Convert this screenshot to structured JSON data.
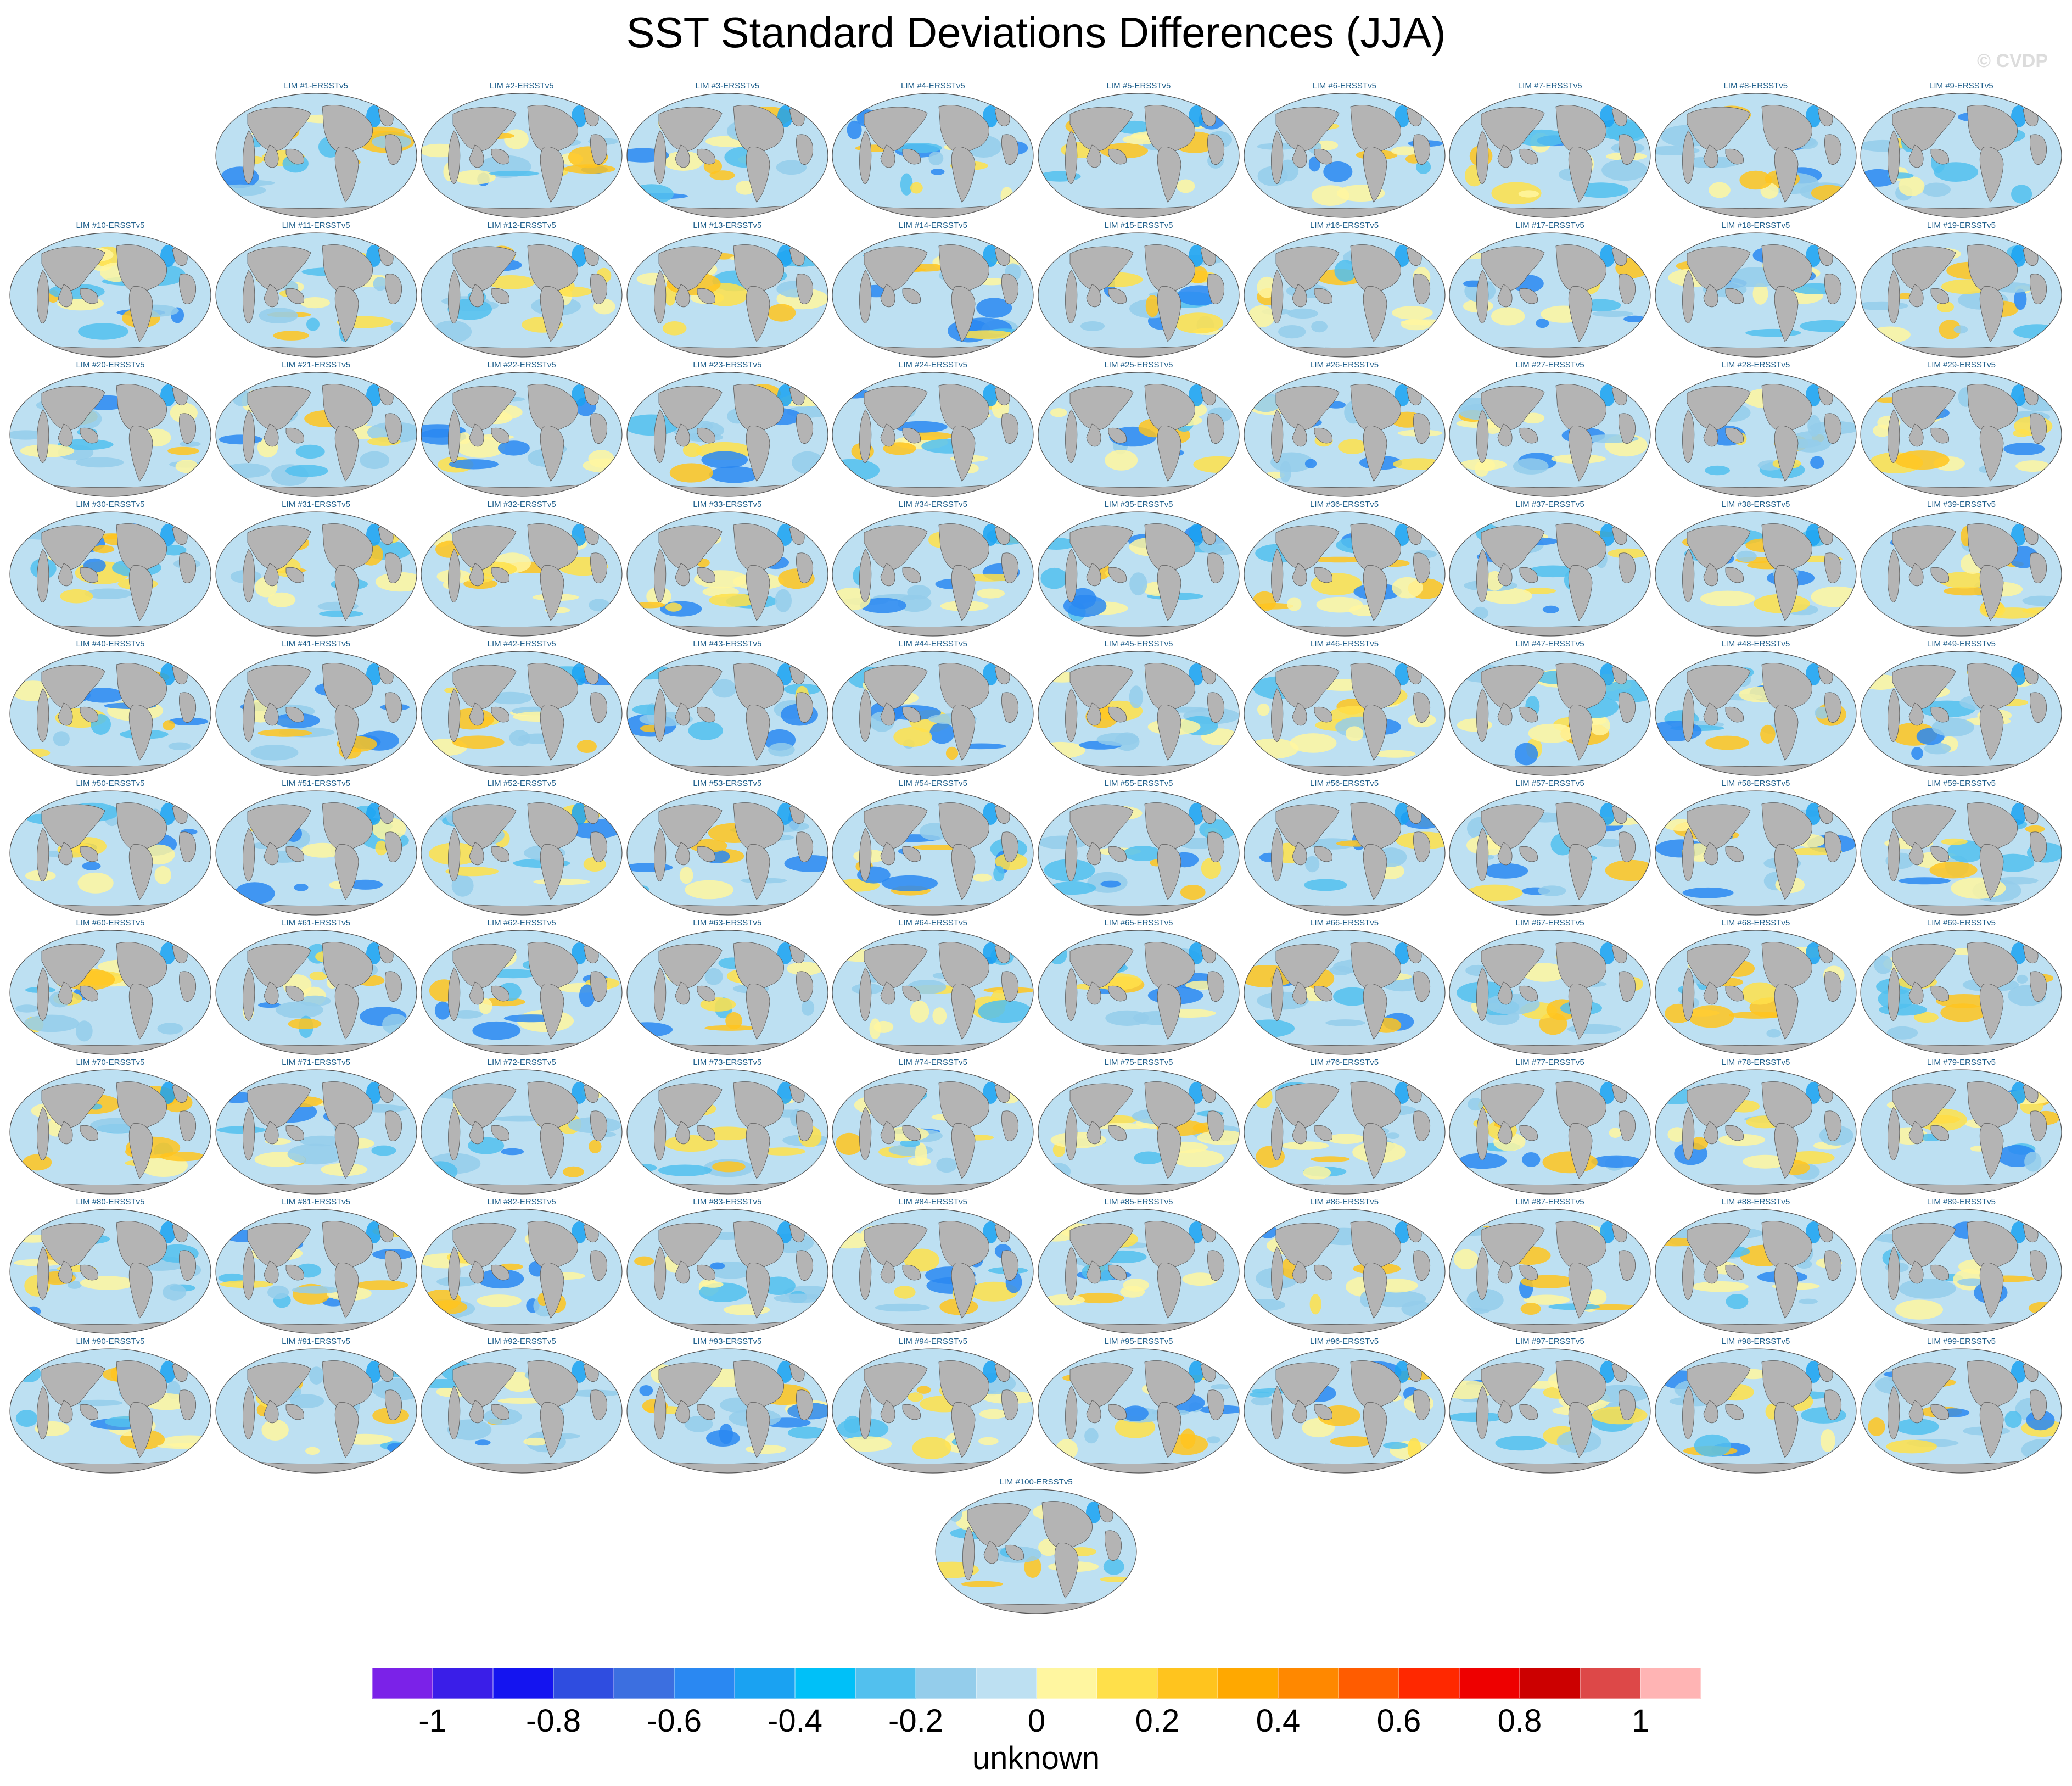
{
  "figure": {
    "title": "SST Standard Deviations Differences (JJA)",
    "credit": "© CVDP",
    "units_label": "unknown"
  },
  "panels": [
    {
      "label": "LIM #1-ERSSTv5"
    },
    {
      "label": "LIM #2-ERSSTv5"
    },
    {
      "label": "LIM #3-ERSSTv5"
    },
    {
      "label": "LIM #4-ERSSTv5"
    },
    {
      "label": "LIM #5-ERSSTv5"
    },
    {
      "label": "LIM #6-ERSSTv5"
    },
    {
      "label": "LIM #7-ERSSTv5"
    },
    {
      "label": "LIM #8-ERSSTv5"
    },
    {
      "label": "LIM #9-ERSSTv5"
    },
    {
      "label": "LIM #10-ERSSTv5"
    },
    {
      "label": "LIM #11-ERSSTv5"
    },
    {
      "label": "LIM #12-ERSSTv5"
    },
    {
      "label": "LIM #13-ERSSTv5"
    },
    {
      "label": "LIM #14-ERSSTv5"
    },
    {
      "label": "LIM #15-ERSSTv5"
    },
    {
      "label": "LIM #16-ERSSTv5"
    },
    {
      "label": "LIM #17-ERSSTv5"
    },
    {
      "label": "LIM #18-ERSSTv5"
    },
    {
      "label": "LIM #19-ERSSTv5"
    },
    {
      "label": "LIM #20-ERSSTv5"
    },
    {
      "label": "LIM #21-ERSSTv5"
    },
    {
      "label": "LIM #22-ERSSTv5"
    },
    {
      "label": "LIM #23-ERSSTv5"
    },
    {
      "label": "LIM #24-ERSSTv5"
    },
    {
      "label": "LIM #25-ERSSTv5"
    },
    {
      "label": "LIM #26-ERSSTv5"
    },
    {
      "label": "LIM #27-ERSSTv5"
    },
    {
      "label": "LIM #28-ERSSTv5"
    },
    {
      "label": "LIM #29-ERSSTv5"
    },
    {
      "label": "LIM #30-ERSSTv5"
    },
    {
      "label": "LIM #31-ERSSTv5"
    },
    {
      "label": "LIM #32-ERSSTv5"
    },
    {
      "label": "LIM #33-ERSSTv5"
    },
    {
      "label": "LIM #34-ERSSTv5"
    },
    {
      "label": "LIM #35-ERSSTv5"
    },
    {
      "label": "LIM #36-ERSSTv5"
    },
    {
      "label": "LIM #37-ERSSTv5"
    },
    {
      "label": "LIM #38-ERSSTv5"
    },
    {
      "label": "LIM #39-ERSSTv5"
    },
    {
      "label": "LIM #40-ERSSTv5"
    },
    {
      "label": "LIM #41-ERSSTv5"
    },
    {
      "label": "LIM #42-ERSSTv5"
    },
    {
      "label": "LIM #43-ERSSTv5"
    },
    {
      "label": "LIM #44-ERSSTv5"
    },
    {
      "label": "LIM #45-ERSSTv5"
    },
    {
      "label": "LIM #46-ERSSTv5"
    },
    {
      "label": "LIM #47-ERSSTv5"
    },
    {
      "label": "LIM #48-ERSSTv5"
    },
    {
      "label": "LIM #49-ERSSTv5"
    },
    {
      "label": "LIM #50-ERSSTv5"
    },
    {
      "label": "LIM #51-ERSSTv5"
    },
    {
      "label": "LIM #52-ERSSTv5"
    },
    {
      "label": "LIM #53-ERSSTv5"
    },
    {
      "label": "LIM #54-ERSSTv5"
    },
    {
      "label": "LIM #55-ERSSTv5"
    },
    {
      "label": "LIM #56-ERSSTv5"
    },
    {
      "label": "LIM #57-ERSSTv5"
    },
    {
      "label": "LIM #58-ERSSTv5"
    },
    {
      "label": "LIM #59-ERSSTv5"
    },
    {
      "label": "LIM #60-ERSSTv5"
    },
    {
      "label": "LIM #61-ERSSTv5"
    },
    {
      "label": "LIM #62-ERSSTv5"
    },
    {
      "label": "LIM #63-ERSSTv5"
    },
    {
      "label": "LIM #64-ERSSTv5"
    },
    {
      "label": "LIM #65-ERSSTv5"
    },
    {
      "label": "LIM #66-ERSSTv5"
    },
    {
      "label": "LIM #67-ERSSTv5"
    },
    {
      "label": "LIM #68-ERSSTv5"
    },
    {
      "label": "LIM #69-ERSSTv5"
    },
    {
      "label": "LIM #70-ERSSTv5"
    },
    {
      "label": "LIM #71-ERSSTv5"
    },
    {
      "label": "LIM #72-ERSSTv5"
    },
    {
      "label": "LIM #73-ERSSTv5"
    },
    {
      "label": "LIM #74-ERSSTv5"
    },
    {
      "label": "LIM #75-ERSSTv5"
    },
    {
      "label": "LIM #76-ERSSTv5"
    },
    {
      "label": "LIM #77-ERSSTv5"
    },
    {
      "label": "LIM #78-ERSSTv5"
    },
    {
      "label": "LIM #79-ERSSTv5"
    },
    {
      "label": "LIM #80-ERSSTv5"
    },
    {
      "label": "LIM #81-ERSSTv5"
    },
    {
      "label": "LIM #82-ERSSTv5"
    },
    {
      "label": "LIM #83-ERSSTv5"
    },
    {
      "label": "LIM #84-ERSSTv5"
    },
    {
      "label": "LIM #85-ERSSTv5"
    },
    {
      "label": "LIM #86-ERSSTv5"
    },
    {
      "label": "LIM #87-ERSSTv5"
    },
    {
      "label": "LIM #88-ERSSTv5"
    },
    {
      "label": "LIM #89-ERSSTv5"
    },
    {
      "label": "LIM #90-ERSSTv5"
    },
    {
      "label": "LIM #91-ERSSTv5"
    },
    {
      "label": "LIM #92-ERSSTv5"
    },
    {
      "label": "LIM #93-ERSSTv5"
    },
    {
      "label": "LIM #94-ERSSTv5"
    },
    {
      "label": "LIM #95-ERSSTv5"
    },
    {
      "label": "LIM #96-ERSSTv5"
    },
    {
      "label": "LIM #97-ERSSTv5"
    },
    {
      "label": "LIM #98-ERSSTv5"
    },
    {
      "label": "LIM #99-ERSSTv5"
    },
    {
      "label": "LIM #100-ERSSTv5"
    }
  ],
  "colorbar": {
    "colors": [
      "#7b22e8",
      "#3a1ee8",
      "#1414f0",
      "#2f4de0",
      "#3c6fe0",
      "#2a88f2",
      "#1aa2f2",
      "#00c0f8",
      "#52c0ee",
      "#94cdeb",
      "#bde0f2",
      "#fff6a0",
      "#ffe04a",
      "#ffc41e",
      "#ffa800",
      "#ff8800",
      "#ff5c00",
      "#ff2800",
      "#ee0000",
      "#cc0000",
      "#dd4848",
      "#ffb4b4"
    ],
    "tick_labels": [
      "-1",
      "-0.8",
      "-0.6",
      "-0.4",
      "-0.2",
      "0",
      "0.2",
      "0.4",
      "0.6",
      "0.8",
      "1"
    ]
  },
  "palette": {
    "land": "#b4b4b4",
    "ocean_base": "#bde0f2",
    "panel_title": "#1f5f8b"
  }
}
